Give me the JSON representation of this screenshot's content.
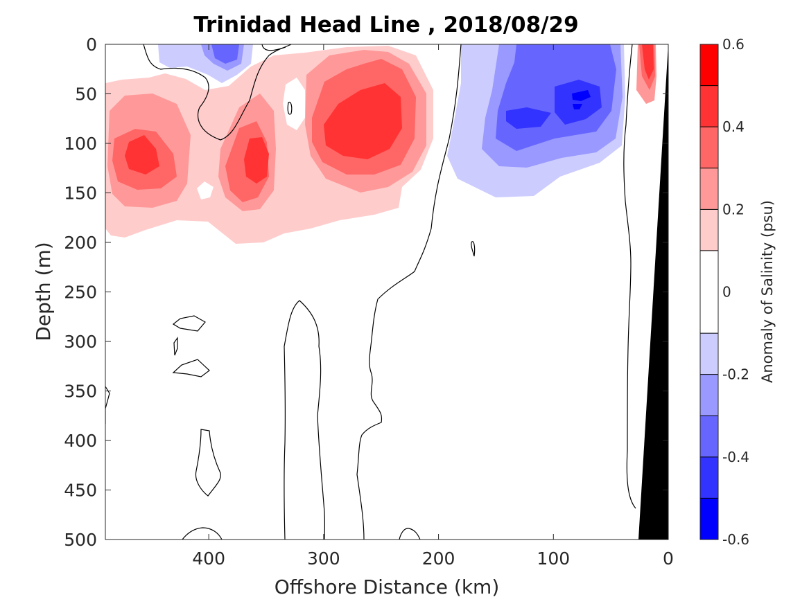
{
  "chart_data": {
    "type": "heatmap",
    "title": "Trinidad Head Line , 2018/08/29",
    "xlabel": "Offshore Distance (km)",
    "ylabel": "Depth (m)",
    "xlim": [
      490,
      0
    ],
    "ylim": [
      0,
      500
    ],
    "xticks": [
      "400",
      "300",
      "200",
      "100",
      "0"
    ],
    "yticks": [
      "0",
      "50",
      "100",
      "150",
      "200",
      "250",
      "300",
      "350",
      "400",
      "450",
      "500"
    ],
    "colorbar": {
      "label": "Anomaly of Salinity (psu)",
      "range": [
        -0.6,
        0.6
      ],
      "ticks": [
        "0.6",
        "0.4",
        "0.2",
        "0",
        "-0.2",
        "-0.4",
        "-0.6"
      ],
      "levels": [
        {
          "min": 0.5,
          "max": 0.6,
          "color": "#ff0000"
        },
        {
          "min": 0.4,
          "max": 0.5,
          "color": "#ff3333"
        },
        {
          "min": 0.3,
          "max": 0.4,
          "color": "#ff6666"
        },
        {
          "min": 0.2,
          "max": 0.3,
          "color": "#ff9999"
        },
        {
          "min": 0.1,
          "max": 0.2,
          "color": "#ffcccc"
        },
        {
          "min": -0.1,
          "max": 0.1,
          "color": "#ffffff"
        },
        {
          "min": -0.2,
          "max": -0.1,
          "color": "#ccccff"
        },
        {
          "min": -0.3,
          "max": -0.2,
          "color": "#9999ff"
        },
        {
          "min": -0.4,
          "max": -0.3,
          "color": "#6666ff"
        },
        {
          "min": -0.5,
          "max": -0.4,
          "color": "#3333ff"
        },
        {
          "min": -0.6,
          "max": -0.5,
          "color": "#0000ff"
        }
      ]
    },
    "features": [
      {
        "name": "salinity-max-offshore",
        "center_km": 465,
        "center_depth_m": 115,
        "peak": 0.4
      },
      {
        "name": "salinity-max-mid",
        "center_km": 360,
        "center_depth_m": 115,
        "peak": 0.5
      },
      {
        "name": "salinity-max-core",
        "center_km": 275,
        "center_depth_m": 90,
        "peak": 0.5
      },
      {
        "name": "salinity-max-nearshore",
        "center_km": 15,
        "center_depth_m": 30,
        "peak": 0.5
      },
      {
        "name": "salinity-min-surface",
        "center_km": 390,
        "center_depth_m": 10,
        "peak": -0.3
      },
      {
        "name": "salinity-min-shelf-break",
        "center_km": 85,
        "center_depth_m": 60,
        "peak": -0.5
      }
    ],
    "grid": false,
    "legend": "colorbar-right"
  }
}
